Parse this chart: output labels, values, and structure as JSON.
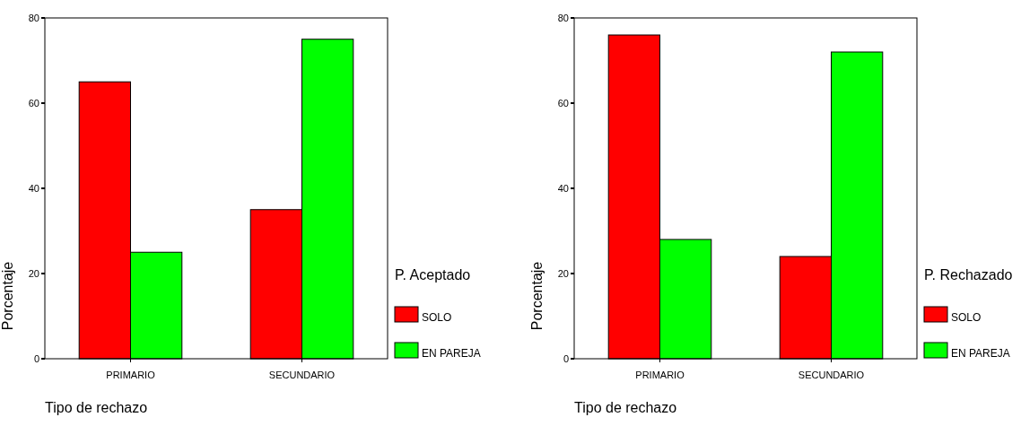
{
  "chart_data": [
    {
      "type": "bar",
      "xlabel": "Tipo de rechazo",
      "ylabel": "Porcentaje",
      "legend_title": "P. Aceptado",
      "categories": [
        "PRIMARIO",
        "SECUNDARIO"
      ],
      "series": [
        {
          "name": "SOLO",
          "color": "#ff0000",
          "values": [
            65,
            35
          ]
        },
        {
          "name": "EN PAREJA",
          "color": "#00ff00",
          "values": [
            25,
            75
          ]
        }
      ],
      "ylim": [
        0,
        80
      ],
      "yticks": [
        0,
        20,
        40,
        60,
        80
      ],
      "grid": false,
      "legend": "right"
    },
    {
      "type": "bar",
      "xlabel": "Tipo de rechazo",
      "ylabel": "Porcentaje",
      "legend_title": "P. Rechazado",
      "categories": [
        "PRIMARIO",
        "SECUNDARIO"
      ],
      "series": [
        {
          "name": "SOLO",
          "color": "#ff0000",
          "values": [
            76,
            24
          ]
        },
        {
          "name": "EN PAREJA",
          "color": "#00ff00",
          "values": [
            28,
            72
          ]
        }
      ],
      "ylim": [
        0,
        80
      ],
      "yticks": [
        0,
        20,
        40,
        60,
        80
      ],
      "grid": false,
      "legend": "right"
    }
  ]
}
